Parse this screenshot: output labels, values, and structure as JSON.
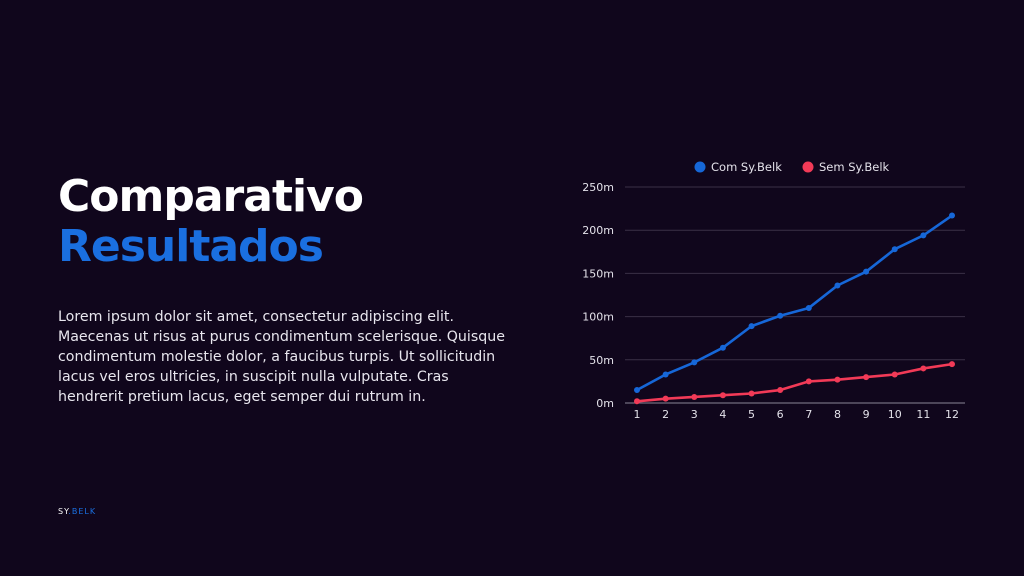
{
  "heading": {
    "line1": "Comparativo",
    "line2": "Resultados"
  },
  "body": "Lorem ipsum dolor sit amet, consectetur adipiscing elit. Maecenas ut risus at purus condimentum scelerisque. Quisque condimentum molestie dolor, a faucibus turpis. Ut sollicitudin lacus vel eros ultricies, in suscipit nulla vulputate. Cras hendrerit pretium lacus, eget semper dui rutrum in.",
  "brand": {
    "part1": "SY",
    "part2": ".BELK"
  },
  "colors": {
    "background": "#10061c",
    "accent": "#1a6fe0",
    "series_blue": "#1667d8",
    "series_red": "#f23a57"
  },
  "chart_data": {
    "type": "line",
    "title": "",
    "xlabel": "",
    "ylabel": "",
    "x": [
      1,
      2,
      3,
      4,
      5,
      6,
      7,
      8,
      9,
      10,
      11,
      12
    ],
    "ylim": [
      0,
      250
    ],
    "yticks": [
      "0m",
      "50m",
      "100m",
      "150m",
      "200m",
      "250m"
    ],
    "grid": true,
    "legend_position": "top",
    "series": [
      {
        "name": "Com Sy.Belk",
        "color": "#1667d8",
        "values": [
          15,
          33,
          47,
          64,
          89,
          101,
          110,
          136,
          152,
          178,
          194,
          217
        ]
      },
      {
        "name": "Sem Sy.Belk",
        "color": "#f23a57",
        "values": [
          2,
          5,
          7,
          9,
          11,
          15,
          25,
          27,
          30,
          33,
          40,
          45
        ]
      }
    ]
  }
}
